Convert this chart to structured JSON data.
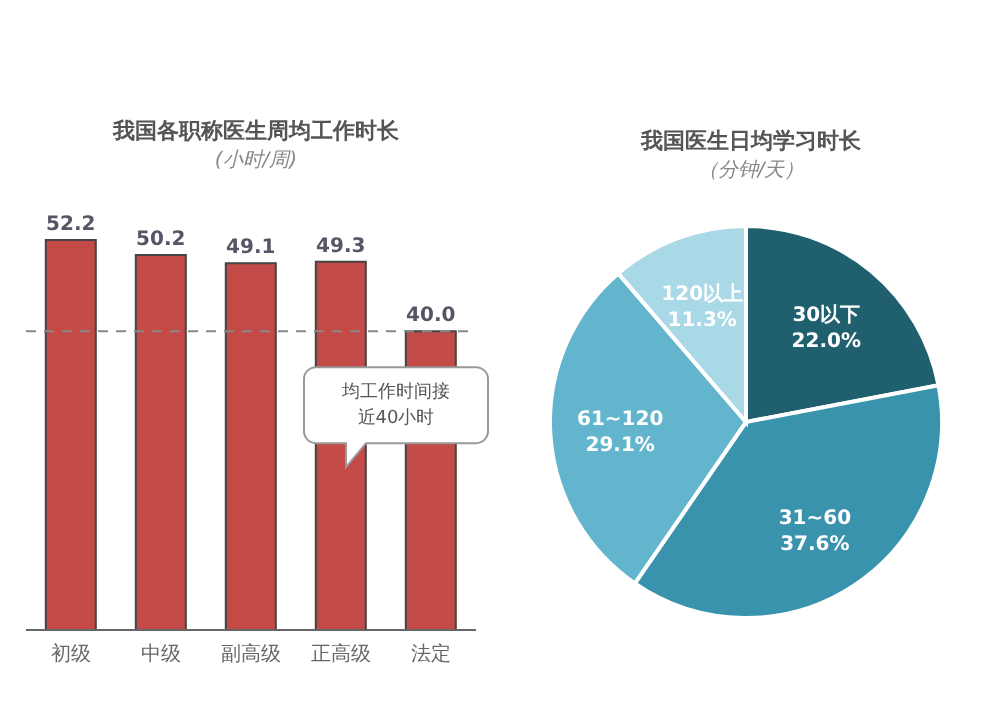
{
  "chart_data": [
    {
      "type": "bar",
      "title": "我国各职称医生周均工作时长",
      "subtitle": "(小时/周)",
      "categories": [
        "初级",
        "中级",
        "副高级",
        "正高级",
        "法定"
      ],
      "values": [
        52.2,
        50.2,
        49.1,
        49.3,
        40.0
      ],
      "value_labels": [
        "52.2",
        "50.2",
        "49.1",
        "49.3",
        "40.0"
      ],
      "color": "#c44a48",
      "tick_labels": "x",
      "ref_lines": [
        {
          "axis": "y",
          "value": 40,
          "label": "均工作时间接近40小时",
          "color": "#888888",
          "line_style": "dashed"
        }
      ]
    },
    {
      "type": "pie",
      "title": "我国医生日均学习时长",
      "subtitle": "（分钟/天）",
      "categories": [
        "30以下",
        "31~60",
        "61~120",
        "120以上"
      ],
      "values": [
        22.0,
        37.6,
        29.1,
        11.3
      ],
      "value_labels": [
        "22.0%",
        "37.6%",
        "29.1%",
        "11.3%"
      ],
      "colors": [
        "#1f5f6e",
        "#3a93ad",
        "#62b5cc",
        "#a9d8e6"
      ]
    }
  ]
}
